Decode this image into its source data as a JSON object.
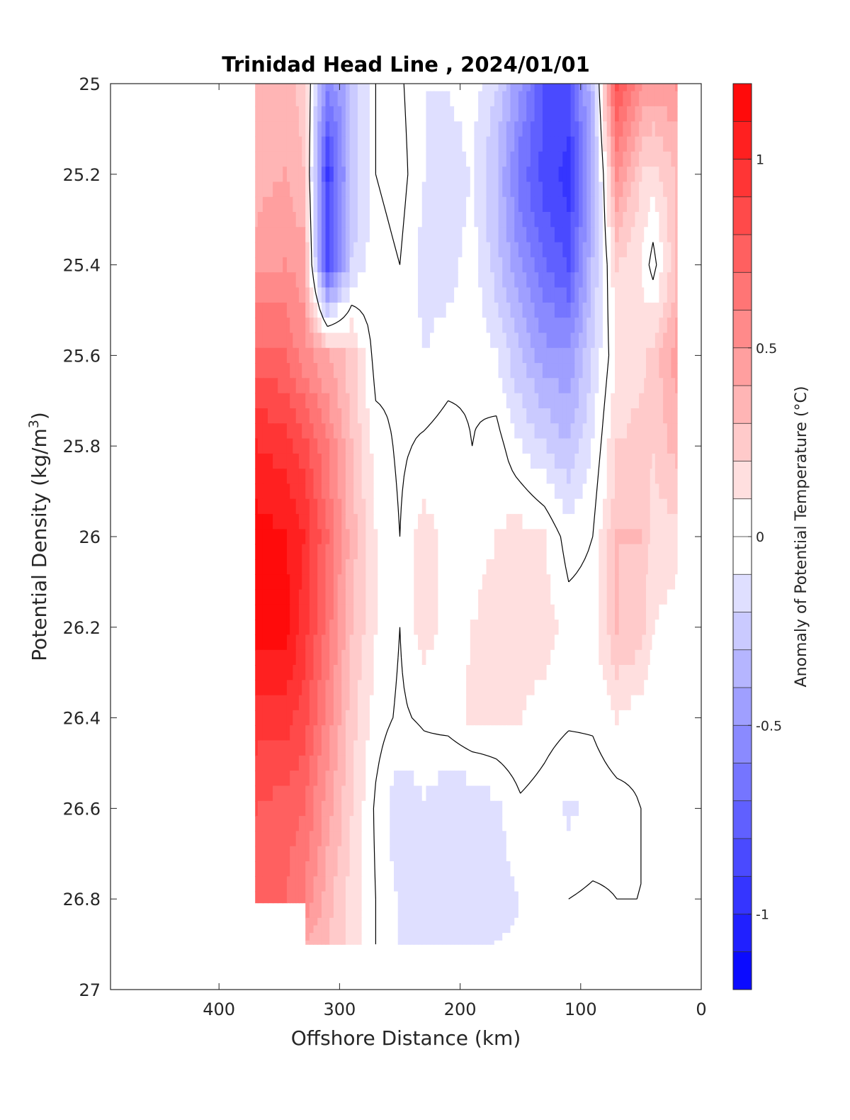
{
  "chart_data": {
    "type": "heatmap",
    "title": "Trinidad Head Line , 2024/01/01",
    "xlabel": "Offshore Distance (km)",
    "ylabel_main": "Potential Density (kg/m",
    "ylabel_sup": "3",
    "ylabel_end": ")",
    "colorbar_label": "Anomaly of Potential Temperature (°C)",
    "xlim": [
      490,
      0
    ],
    "x_reversed": true,
    "ylim": [
      25,
      27
    ],
    "y_reversed": true,
    "x_ticks": [
      400,
      300,
      200,
      100,
      0
    ],
    "y_ticks": [
      25,
      25.2,
      25.4,
      25.6,
      25.8,
      26,
      26.2,
      26.4,
      26.6,
      26.8,
      27
    ],
    "y_tick_labels": [
      "25",
      "25.2",
      "25.4",
      "25.6",
      "25.8",
      "26",
      "26.2",
      "26.4",
      "26.6",
      "26.8",
      "27"
    ],
    "colorbar_range": [
      -1.2,
      1.2
    ],
    "colorbar_levels": 24,
    "colorbar_ticks": [
      1,
      0.5,
      0,
      -0.5,
      -1
    ],
    "colorbar_tick_labels": [
      "1",
      "0.5",
      "0",
      "-0.5",
      "-1"
    ],
    "colormap": {
      "low": "#0000ff",
      "mid": "#ffffff",
      "high": "#ff0000"
    },
    "zero_contour_color": "#000000",
    "columns_km": [
      370,
      345,
      330,
      310,
      290,
      270,
      250,
      230,
      210,
      190,
      170,
      150,
      130,
      110,
      90,
      70,
      50,
      40,
      20
    ],
    "rows_density": [
      25.0,
      25.2,
      25.4,
      25.6,
      25.8,
      26.0,
      26.2,
      26.4,
      26.6,
      26.8,
      26.9
    ],
    "anomaly_values": [
      [
        0.3,
        0.35,
        0.25,
        -0.6,
        -0.3,
        0.0,
        0.02,
        -0.1,
        -0.1,
        -0.05,
        -0.2,
        -0.5,
        -0.8,
        -0.8,
        -0.3,
        0.85,
        0.5,
        0.45,
        0.5
      ],
      [
        0.35,
        0.4,
        0.3,
        -0.9,
        -0.3,
        0.0,
        0.05,
        -0.1,
        -0.15,
        -0.1,
        -0.3,
        -0.65,
        -0.85,
        -0.95,
        -0.4,
        0.5,
        0.2,
        0.15,
        0.3
      ],
      [
        0.45,
        0.5,
        0.45,
        -0.85,
        -0.2,
        -0.05,
        0.0,
        -0.15,
        -0.15,
        -0.05,
        -0.25,
        -0.5,
        -0.7,
        -0.8,
        -0.3,
        0.2,
        0.1,
        -0.05,
        0.3
      ],
      [
        0.75,
        0.7,
        0.55,
        0.4,
        0.25,
        -0.05,
        -0.02,
        -0.1,
        -0.05,
        -0.02,
        -0.1,
        -0.3,
        -0.45,
        -0.5,
        -0.2,
        0.1,
        0.15,
        0.25,
        0.45
      ],
      [
        1.0,
        0.95,
        0.85,
        0.6,
        0.3,
        0.05,
        -0.02,
        0.02,
        0.05,
        0.0,
        0.05,
        -0.1,
        -0.2,
        -0.3,
        -0.1,
        0.2,
        0.25,
        0.2,
        0.35
      ],
      [
        1.15,
        1.1,
        1.0,
        0.7,
        0.35,
        0.1,
        0.0,
        0.15,
        0.05,
        0.05,
        0.1,
        0.15,
        0.1,
        -0.05,
        0.0,
        0.3,
        0.3,
        0.15,
        0.15
      ],
      [
        1.15,
        1.15,
        0.95,
        0.65,
        0.3,
        0.1,
        0.0,
        0.15,
        0.05,
        0.1,
        0.15,
        0.15,
        0.15,
        0.05,
        0.05,
        0.3,
        0.25,
        0.1,
        0.05
      ],
      [
        0.95,
        0.95,
        0.85,
        0.55,
        0.25,
        0.05,
        -0.02,
        0.02,
        0.05,
        0.12,
        0.1,
        0.1,
        0.05,
        0.02,
        0.02,
        0.1,
        0.05,
        0.0,
        0.02
      ],
      [
        0.8,
        0.75,
        0.7,
        0.45,
        0.2,
        -0.02,
        -0.18,
        -0.12,
        -0.2,
        -0.2,
        -0.12,
        -0.02,
        -0.05,
        -0.12,
        -0.08,
        -0.05,
        0.0,
        0.0,
        0.0
      ],
      [
        0.75,
        0.7,
        0.6,
        0.35,
        0.15,
        0.0,
        -0.12,
        -0.15,
        -0.2,
        -0.2,
        -0.15,
        -0.1,
        -0.05,
        0.0,
        0.02,
        0.0,
        0.0,
        0.0,
        0.0
      ],
      [
        null,
        null,
        0.4,
        0.3,
        0.15,
        0.0,
        -0.12,
        -0.15,
        -0.15,
        -0.12,
        -0.1,
        -0.08,
        null,
        null,
        null,
        null,
        null,
        null,
        null
      ]
    ]
  }
}
